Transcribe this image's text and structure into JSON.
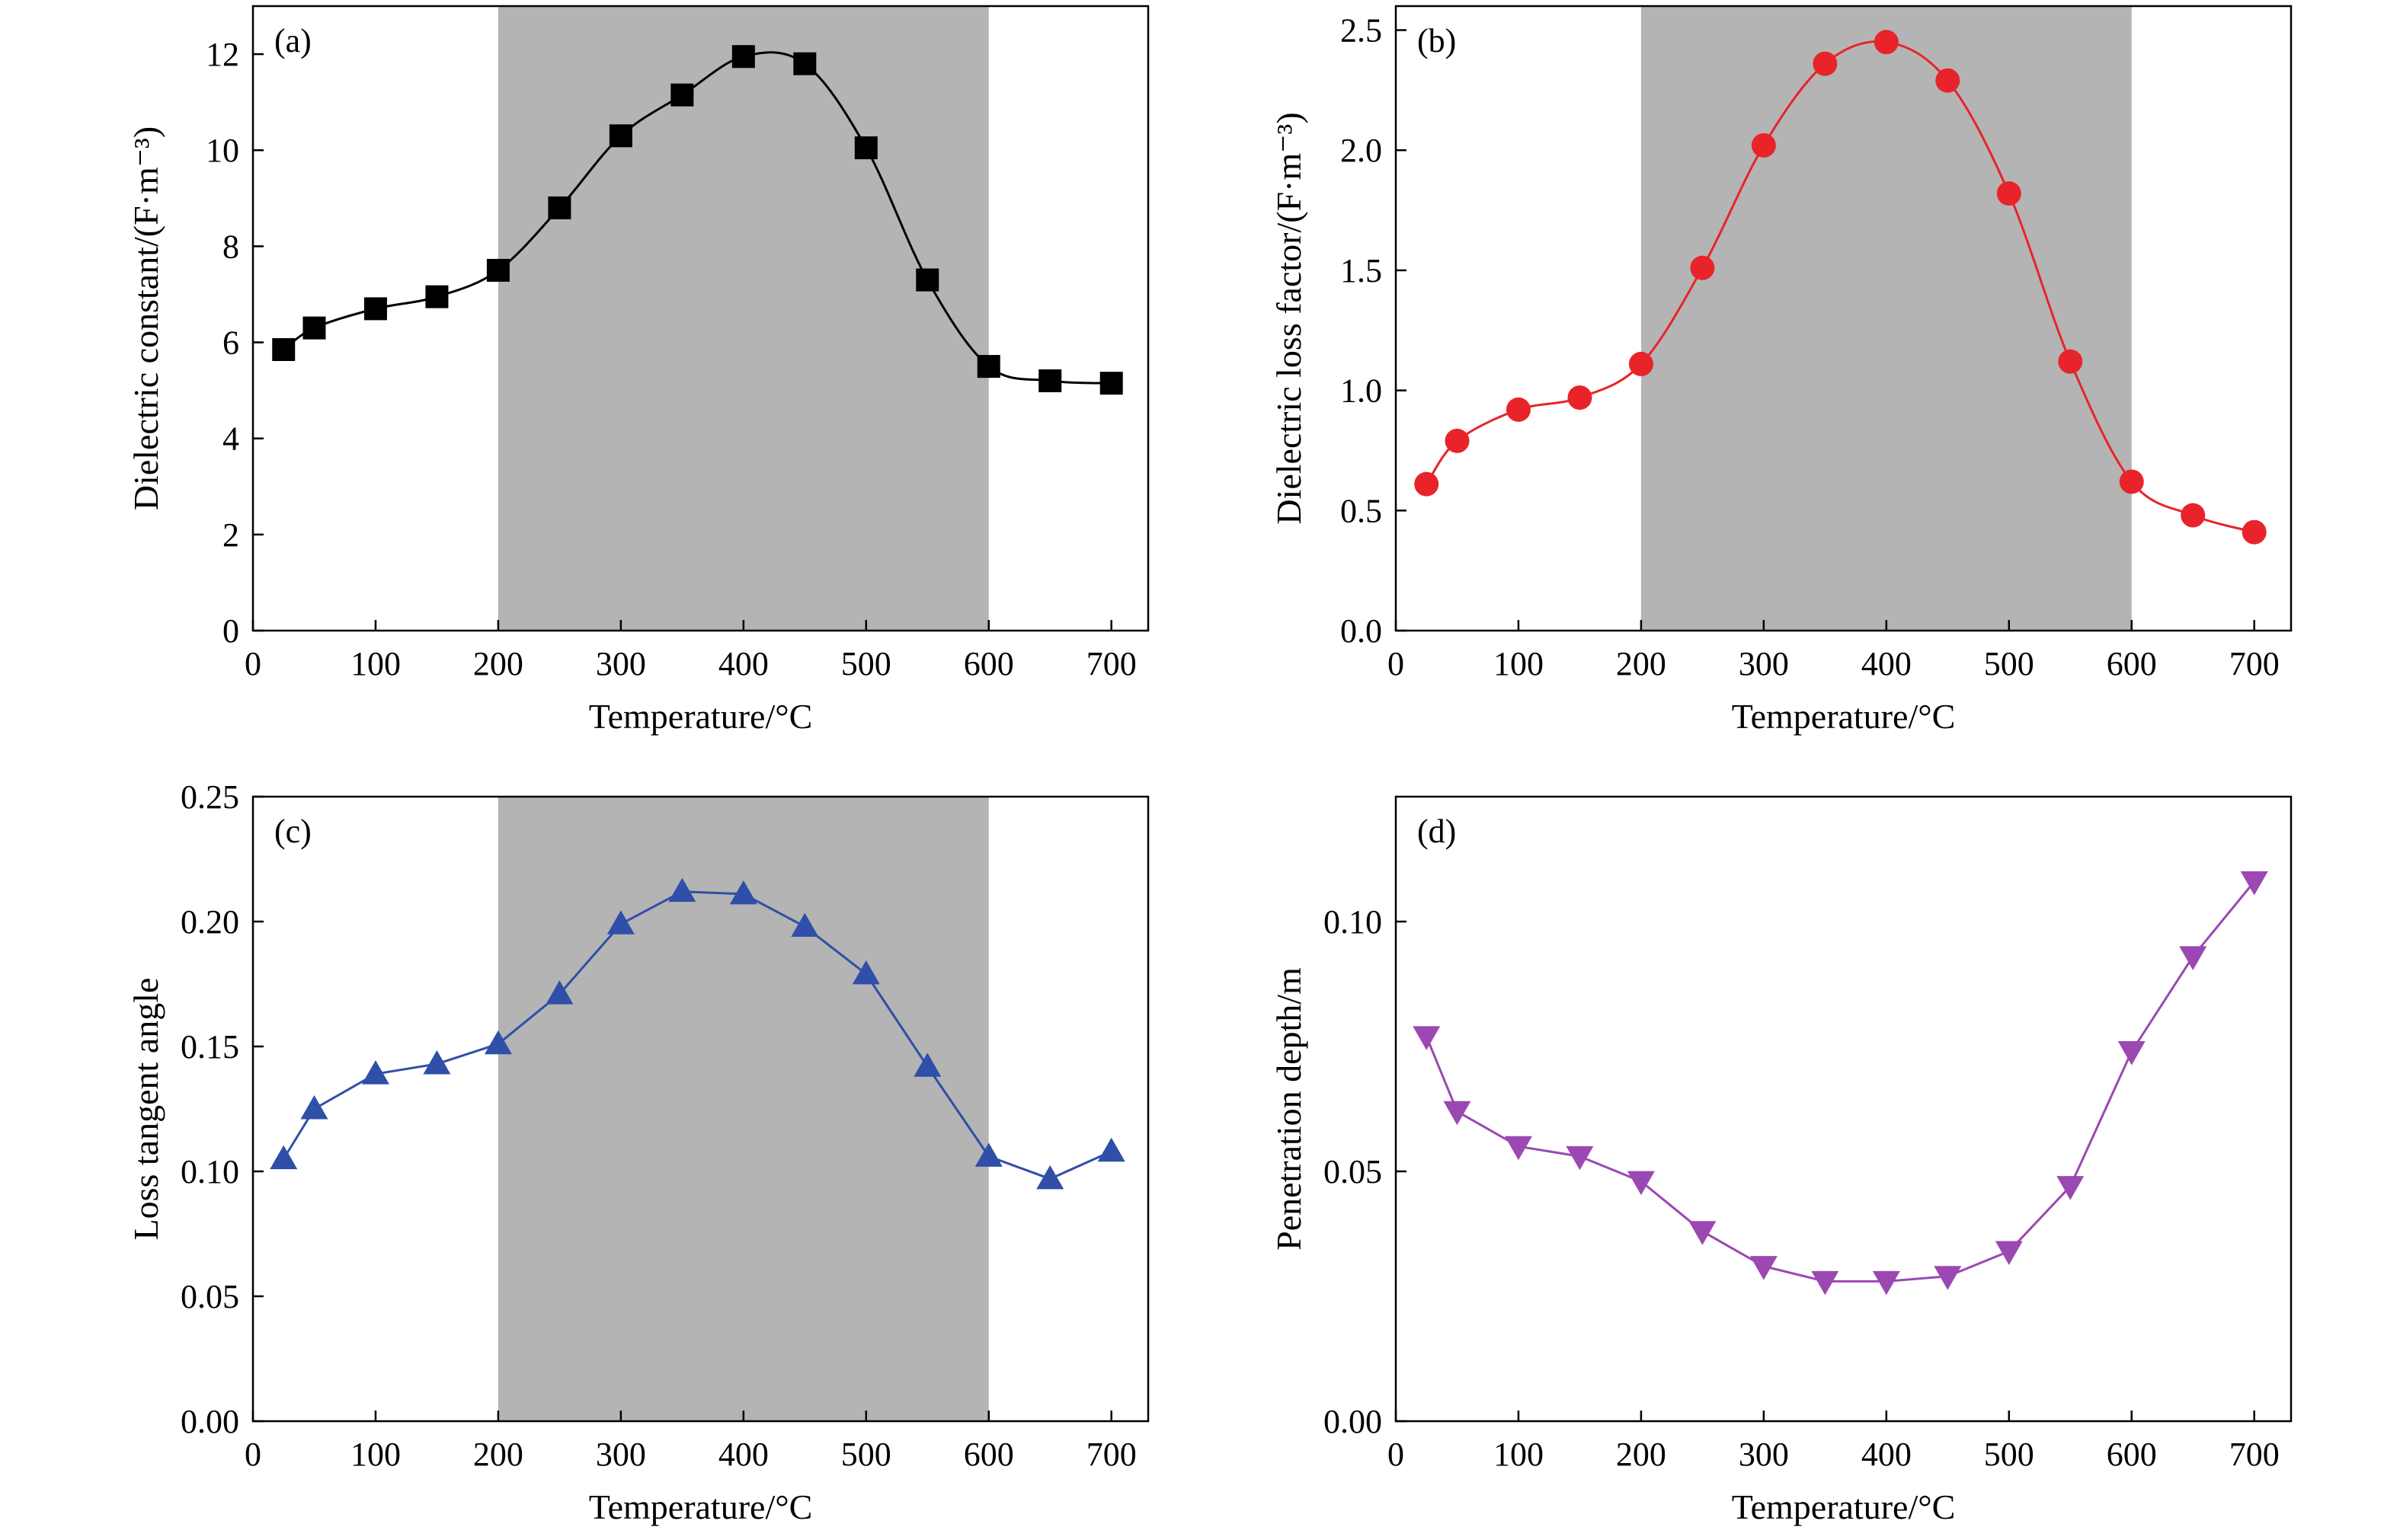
{
  "chart_data": [
    {
      "type": "scatter",
      "panel_label": "(a)",
      "xlabel": "Temperature/°C",
      "ylabel": "Dielectric constant/(F·m⁻³)",
      "xlim": [
        0,
        730
      ],
      "ylim": [
        0,
        13
      ],
      "xticks": [
        0,
        100,
        200,
        300,
        400,
        500,
        600,
        700
      ],
      "yticks": [
        0,
        2,
        4,
        6,
        8,
        10,
        12
      ],
      "ytick_decimals": 0,
      "shaded_region": [
        200,
        600
      ],
      "shaded_color": "#b4b4b4",
      "color": "#000000",
      "marker": "square",
      "line": "smooth",
      "series": [
        {
          "x": [
            25,
            50,
            100,
            150,
            200,
            250,
            300,
            350,
            400,
            450,
            500,
            550,
            600,
            650,
            700
          ],
          "values": [
            5.85,
            6.3,
            6.7,
            6.95,
            7.5,
            8.8,
            10.3,
            11.15,
            11.95,
            11.8,
            10.05,
            7.3,
            5.5,
            5.2,
            5.15
          ]
        }
      ]
    },
    {
      "type": "scatter",
      "panel_label": "(b)",
      "xlabel": "Temperature/°C",
      "ylabel": "Dielectric loss factor/(F·m⁻³)",
      "xlim": [
        0,
        730
      ],
      "ylim": [
        0,
        2.6
      ],
      "xticks": [
        0,
        100,
        200,
        300,
        400,
        500,
        600,
        700
      ],
      "yticks": [
        0.0,
        0.5,
        1.0,
        1.5,
        2.0,
        2.5
      ],
      "ytick_decimals": 1,
      "shaded_region": [
        200,
        600
      ],
      "shaded_color": "#b4b4b4",
      "color": "#e8242a",
      "marker": "circle",
      "line": "smooth",
      "series": [
        {
          "x": [
            25,
            50,
            100,
            150,
            200,
            250,
            300,
            350,
            400,
            450,
            500,
            550,
            600,
            650,
            700
          ],
          "values": [
            0.61,
            0.79,
            0.92,
            0.97,
            1.11,
            1.51,
            2.02,
            2.36,
            2.45,
            2.29,
            1.82,
            1.12,
            0.62,
            0.48,
            0.41
          ]
        }
      ]
    },
    {
      "type": "line",
      "panel_label": "(c)",
      "xlabel": "Temperature/°C",
      "ylabel": "Loss tangent angle",
      "xlim": [
        0,
        730
      ],
      "ylim": [
        0,
        0.25
      ],
      "xticks": [
        0,
        100,
        200,
        300,
        400,
        500,
        600,
        700
      ],
      "yticks": [
        0.0,
        0.05,
        0.1,
        0.15,
        0.2,
        0.25
      ],
      "ytick_decimals": 2,
      "shaded_region": [
        200,
        600
      ],
      "shaded_color": "#b4b4b4",
      "color": "#2f4fa8",
      "marker": "triangle-up",
      "line": "straight",
      "series": [
        {
          "x": [
            25,
            50,
            100,
            150,
            200,
            250,
            300,
            350,
            400,
            450,
            500,
            550,
            600,
            650,
            700
          ],
          "values": [
            0.105,
            0.125,
            0.139,
            0.143,
            0.151,
            0.171,
            0.199,
            0.212,
            0.211,
            0.198,
            0.179,
            0.142,
            0.106,
            0.097,
            0.108
          ]
        }
      ]
    },
    {
      "type": "line",
      "panel_label": "(d)",
      "xlabel": "Temperature/°C",
      "ylabel": "Penetration depth/m",
      "xlim": [
        0,
        730
      ],
      "ylim": [
        0,
        0.125
      ],
      "xticks": [
        0,
        100,
        200,
        300,
        400,
        500,
        600,
        700
      ],
      "yticks": [
        0.0,
        0.05,
        0.1
      ],
      "ytick_decimals": 2,
      "shaded_region": null,
      "color": "#9b48b2",
      "marker": "triangle-down",
      "line": "straight",
      "series": [
        {
          "x": [
            25,
            50,
            100,
            150,
            200,
            250,
            300,
            350,
            400,
            450,
            500,
            550,
            600,
            650,
            700
          ],
          "values": [
            0.077,
            0.062,
            0.055,
            0.053,
            0.048,
            0.038,
            0.031,
            0.028,
            0.028,
            0.029,
            0.034,
            0.047,
            0.074,
            0.093,
            0.108
          ]
        }
      ]
    }
  ]
}
